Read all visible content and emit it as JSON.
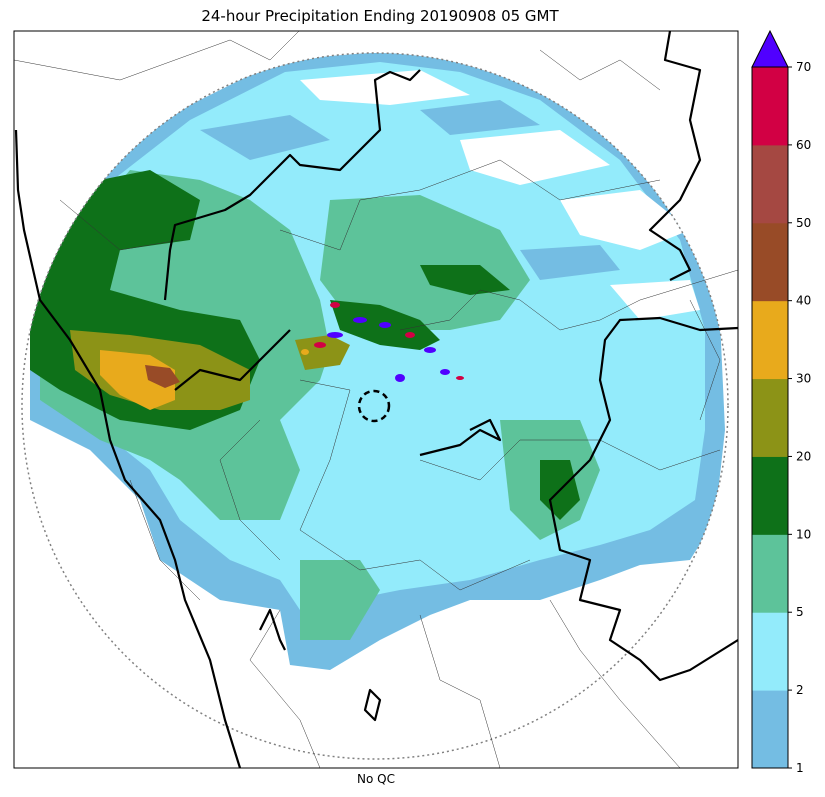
{
  "title": "24-hour Precipitation Ending 20190908 05 GMT",
  "xlabel": "No QC",
  "colorbar": {
    "tick_labels": [
      "1",
      "2",
      "5",
      "10",
      "20",
      "30",
      "40",
      "50",
      "60",
      "70"
    ],
    "bins": [
      {
        "from": 1,
        "to": 2,
        "color": "#74bde3"
      },
      {
        "from": 2,
        "to": 5,
        "color": "#93ebfb"
      },
      {
        "from": 5,
        "to": 10,
        "color": "#5dc39a"
      },
      {
        "from": 10,
        "to": 20,
        "color": "#0e7119"
      },
      {
        "from": 20,
        "to": 30,
        "color": "#8c9317"
      },
      {
        "from": 30,
        "to": 40,
        "color": "#e8aa1c"
      },
      {
        "from": 40,
        "to": 50,
        "color": "#984b27"
      },
      {
        "from": 50,
        "to": 60,
        "color": "#a54842"
      },
      {
        "from": 60,
        "to": 70,
        "color": "#d20044"
      }
    ],
    "extend_max_color": "#5000ff"
  }
}
